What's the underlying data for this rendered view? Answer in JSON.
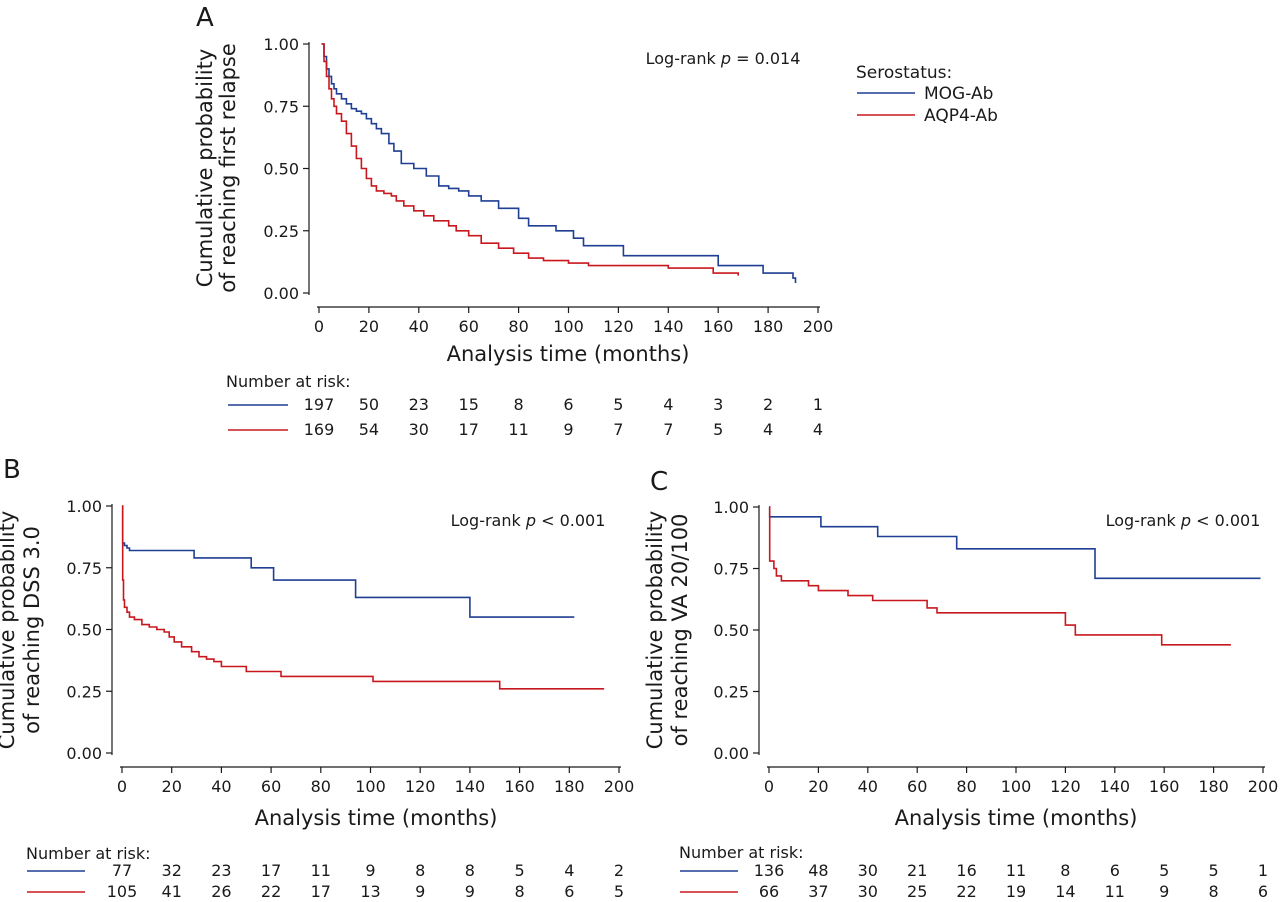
{
  "colors": {
    "mog": "#1f3f94",
    "aqp4": "#c8181e",
    "axis": "#1a1a1a"
  },
  "legend": {
    "title": "Serostatus:",
    "items": [
      "MOG-Ab",
      "AQP4-Ab"
    ]
  },
  "chart_data": [
    {
      "panel": "A",
      "type": "line",
      "step": true,
      "ylabel": [
        "Cumulative probability",
        "of reaching  first relapse"
      ],
      "xlabel": "Analysis time (months)",
      "xlim": [
        0,
        200
      ],
      "ylim": [
        0,
        1
      ],
      "xticks": [
        0,
        20,
        40,
        60,
        80,
        100,
        120,
        140,
        160,
        180,
        200
      ],
      "yticks": [
        0,
        0.25,
        0.5,
        0.75,
        1.0
      ],
      "ytick_labels": [
        "0.00",
        "0.25",
        "0.50",
        "0.75",
        "1.00"
      ],
      "annotation": {
        "prefix": "Log-rank ",
        "p": "p",
        "suffix": " = 0.014"
      },
      "series": [
        {
          "name": "MOG-Ab",
          "color": "#1f3f94",
          "points": [
            [
              1,
              1.0
            ],
            [
              2,
              0.95
            ],
            [
              3,
              0.9
            ],
            [
              4,
              0.87
            ],
            [
              5,
              0.84
            ],
            [
              6,
              0.82
            ],
            [
              7,
              0.8
            ],
            [
              9,
              0.78
            ],
            [
              11,
              0.76
            ],
            [
              13,
              0.74
            ],
            [
              15,
              0.73
            ],
            [
              17,
              0.72
            ],
            [
              19,
              0.7
            ],
            [
              21,
              0.68
            ],
            [
              23,
              0.66
            ],
            [
              25,
              0.64
            ],
            [
              28,
              0.6
            ],
            [
              30,
              0.57
            ],
            [
              33,
              0.52
            ],
            [
              38,
              0.5
            ],
            [
              43,
              0.47
            ],
            [
              48,
              0.43
            ],
            [
              52,
              0.42
            ],
            [
              56,
              0.41
            ],
            [
              60,
              0.39
            ],
            [
              65,
              0.37
            ],
            [
              72,
              0.34
            ],
            [
              80,
              0.3
            ],
            [
              84,
              0.27
            ],
            [
              95,
              0.25
            ],
            [
              102,
              0.22
            ],
            [
              106,
              0.19
            ],
            [
              122,
              0.15
            ],
            [
              160,
              0.11
            ],
            [
              178,
              0.08
            ],
            [
              190,
              0.06
            ],
            [
              191,
              0.04
            ]
          ],
          "end": 191
        },
        {
          "name": "AQP4-Ab",
          "color": "#c8181e",
          "points": [
            [
              1,
              1.0
            ],
            [
              2,
              0.93
            ],
            [
              3,
              0.87
            ],
            [
              4,
              0.82
            ],
            [
              5,
              0.78
            ],
            [
              6,
              0.75
            ],
            [
              7,
              0.72
            ],
            [
              9,
              0.69
            ],
            [
              11,
              0.64
            ],
            [
              13,
              0.59
            ],
            [
              15,
              0.54
            ],
            [
              17,
              0.5
            ],
            [
              19,
              0.46
            ],
            [
              21,
              0.43
            ],
            [
              23,
              0.41
            ],
            [
              26,
              0.4
            ],
            [
              29,
              0.39
            ],
            [
              31,
              0.37
            ],
            [
              34,
              0.35
            ],
            [
              38,
              0.33
            ],
            [
              42,
              0.31
            ],
            [
              46,
              0.29
            ],
            [
              52,
              0.27
            ],
            [
              55,
              0.25
            ],
            [
              60,
              0.23
            ],
            [
              65,
              0.2
            ],
            [
              72,
              0.18
            ],
            [
              78,
              0.16
            ],
            [
              84,
              0.14
            ],
            [
              90,
              0.13
            ],
            [
              100,
              0.12
            ],
            [
              108,
              0.11
            ],
            [
              140,
              0.1
            ],
            [
              158,
              0.08
            ],
            [
              168,
              0.07
            ]
          ],
          "end": 168
        }
      ],
      "risk_label": "Number at risk:",
      "risk_rows": [
        {
          "name": "MOG-Ab",
          "color": "#1f3f94",
          "values": [
            "197",
            "50",
            "23",
            "15",
            "8",
            "6",
            "5",
            "4",
            "3",
            "2",
            "1"
          ]
        },
        {
          "name": "AQP4-Ab",
          "color": "#c8181e",
          "values": [
            "169",
            "54",
            "30",
            "17",
            "11",
            "9",
            "7",
            "7",
            "5",
            "4",
            "4"
          ]
        }
      ]
    },
    {
      "panel": "B",
      "type": "line",
      "step": true,
      "ylabel": [
        "Cumulative probability",
        "of reaching DSS 3.0"
      ],
      "xlabel": "Analysis time (months)",
      "xlim": [
        0,
        200
      ],
      "ylim": [
        0,
        1
      ],
      "xticks": [
        0,
        20,
        40,
        60,
        80,
        100,
        120,
        140,
        160,
        180,
        200
      ],
      "yticks": [
        0,
        0.25,
        0.5,
        0.75,
        1.0
      ],
      "ytick_labels": [
        "0.00",
        "0.25",
        "0.50",
        "0.75",
        "1.00"
      ],
      "annotation": {
        "prefix": "Log-rank ",
        "p": "p",
        "suffix": " < 0.001"
      },
      "series": [
        {
          "name": "MOG-Ab",
          "color": "#1f3f94",
          "points": [
            [
              0,
              1.0
            ],
            [
              0.3,
              0.85
            ],
            [
              1,
              0.84
            ],
            [
              2,
              0.83
            ],
            [
              3,
              0.82
            ],
            [
              29,
              0.79
            ],
            [
              52,
              0.75
            ],
            [
              61,
              0.7
            ],
            [
              94,
              0.63
            ],
            [
              140,
              0.55
            ]
          ],
          "end": 182
        },
        {
          "name": "AQP4-Ab",
          "color": "#c8181e",
          "points": [
            [
              0,
              1.0
            ],
            [
              0.3,
              0.7
            ],
            [
              0.6,
              0.62
            ],
            [
              1,
              0.59
            ],
            [
              2,
              0.57
            ],
            [
              3,
              0.55
            ],
            [
              5,
              0.54
            ],
            [
              8,
              0.52
            ],
            [
              11,
              0.51
            ],
            [
              14,
              0.5
            ],
            [
              17,
              0.49
            ],
            [
              19,
              0.47
            ],
            [
              21,
              0.45
            ],
            [
              24,
              0.43
            ],
            [
              28,
              0.41
            ],
            [
              31,
              0.39
            ],
            [
              34,
              0.38
            ],
            [
              37,
              0.37
            ],
            [
              40,
              0.35
            ],
            [
              50,
              0.33
            ],
            [
              64,
              0.31
            ],
            [
              101,
              0.29
            ],
            [
              152,
              0.26
            ]
          ],
          "end": 194
        }
      ],
      "risk_label": "Number at risk:",
      "risk_rows": [
        {
          "name": "MOG-Ab",
          "color": "#1f3f94",
          "values": [
            "77",
            "32",
            "23",
            "17",
            "11",
            "9",
            "8",
            "8",
            "5",
            "4",
            "2"
          ]
        },
        {
          "name": "AQP4-Ab",
          "color": "#c8181e",
          "values": [
            "105",
            "41",
            "26",
            "22",
            "17",
            "13",
            "9",
            "9",
            "8",
            "6",
            "5"
          ]
        }
      ]
    },
    {
      "panel": "C",
      "type": "line",
      "step": true,
      "ylabel": [
        "Cumulative probability",
        "of reaching VA 20/100"
      ],
      "xlabel": "Analysis time (months)",
      "xlim": [
        0,
        200
      ],
      "ylim": [
        0,
        1
      ],
      "xticks": [
        0,
        20,
        40,
        60,
        80,
        100,
        120,
        140,
        160,
        180,
        200
      ],
      "yticks": [
        0,
        0.25,
        0.5,
        0.75,
        1.0
      ],
      "ytick_labels": [
        "0.00",
        "0.25",
        "0.50",
        "0.75",
        "1.00"
      ],
      "annotation": {
        "prefix": "Log-rank ",
        "p": "p",
        "suffix": " < 0.001"
      },
      "series": [
        {
          "name": "MOG-Ab",
          "color": "#1f3f94",
          "points": [
            [
              0,
              1.0
            ],
            [
              0.3,
              0.96
            ],
            [
              21,
              0.92
            ],
            [
              44,
              0.88
            ],
            [
              76,
              0.83
            ],
            [
              132,
              0.71
            ]
          ],
          "end": 199
        },
        {
          "name": "AQP4-Ab",
          "color": "#c8181e",
          "points": [
            [
              0,
              1.0
            ],
            [
              0.3,
              0.78
            ],
            [
              2,
              0.75
            ],
            [
              3,
              0.72
            ],
            [
              5,
              0.7
            ],
            [
              16,
              0.68
            ],
            [
              20,
              0.66
            ],
            [
              32,
              0.64
            ],
            [
              42,
              0.62
            ],
            [
              64,
              0.59
            ],
            [
              68,
              0.57
            ],
            [
              120,
              0.52
            ],
            [
              124,
              0.48
            ],
            [
              159,
              0.44
            ]
          ],
          "end": 187
        }
      ],
      "risk_label": "Number at risk:",
      "risk_rows": [
        {
          "name": "MOG-Ab",
          "color": "#1f3f94",
          "values": [
            "136",
            "48",
            "30",
            "21",
            "16",
            "11",
            "8",
            "6",
            "5",
            "5",
            "1"
          ]
        },
        {
          "name": "AQP4-Ab",
          "color": "#c8181e",
          "values": [
            "66",
            "37",
            "30",
            "25",
            "22",
            "19",
            "14",
            "11",
            "9",
            "8",
            "6"
          ]
        }
      ]
    }
  ]
}
